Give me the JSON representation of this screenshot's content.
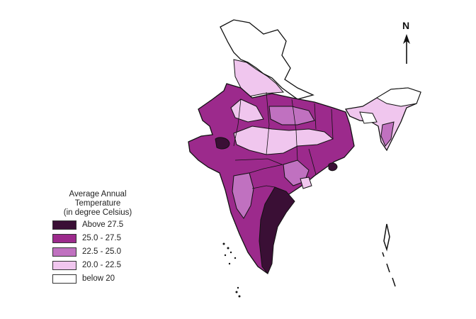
{
  "legend": {
    "title_line1": "Average Annual",
    "title_line2": "Temperature",
    "title_line3": "(in degree Celsius)",
    "items": [
      {
        "label": "Above 27.5",
        "color": "#3a0f35"
      },
      {
        "label": "25.0 - 27.5",
        "color": "#9c2a8c"
      },
      {
        "label": "22.5 - 25.0",
        "color": "#c071c0"
      },
      {
        "label": "20.0 - 22.5",
        "color": "#f0c6ee"
      },
      {
        "label": "below 20",
        "color": "#ffffff"
      }
    ]
  },
  "north_arrow": {
    "letter": "N",
    "icon": "north-arrow-icon"
  }
}
